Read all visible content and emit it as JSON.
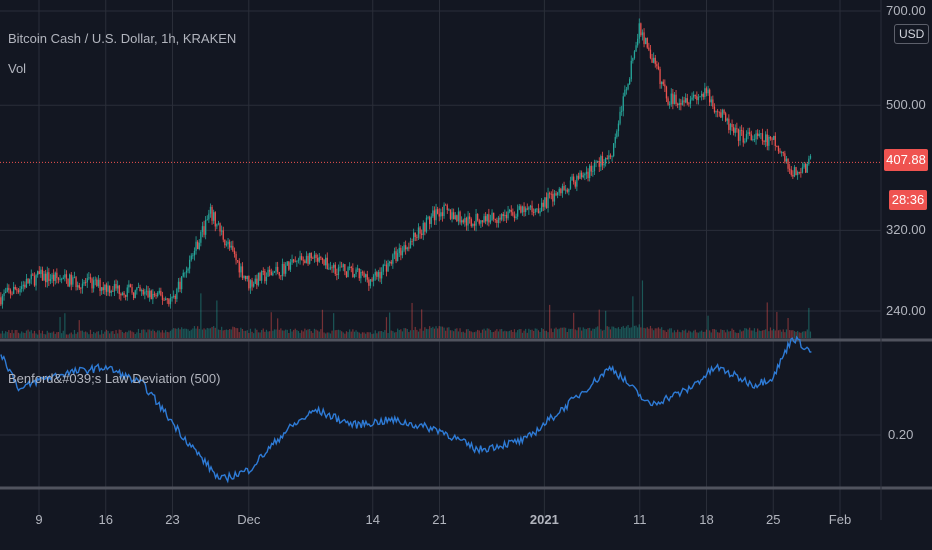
{
  "header": {
    "symbol_title": "Bitcoin Cash / U.S. Dollar, 1h, KRAKEN",
    "volume_label": "Vol",
    "indicator_label": "Benford&#039;s Law Deviation (500)",
    "currency_button": "USD"
  },
  "price_axis": {
    "ticks": [
      "700.00",
      "500.00",
      "320.00",
      "240.00"
    ],
    "last_price": "407.88",
    "countdown": "28:36"
  },
  "indicator_axis": {
    "ticks": [
      "0.20"
    ]
  },
  "time_axis": {
    "ticks": [
      "9",
      "16",
      "23",
      "Dec",
      "14",
      "21",
      "2021",
      "11",
      "18",
      "25",
      "Feb"
    ]
  },
  "colors": {
    "background": "#131722",
    "grid": "#2a2e39",
    "up": "#26a69a",
    "down": "#ef5350",
    "indicator_line": "#2962ff",
    "badge_red": "#ef5350",
    "text": "#b2b5be"
  },
  "chart_data": [
    {
      "type": "candlestick",
      "title": "Bitcoin Cash / U.S. Dollar, 1h, KRAKEN",
      "scale": "log",
      "ylim": [
        220,
        720
      ],
      "y_ticks": [
        240,
        320,
        500,
        700
      ],
      "x": [
        "2020-11-05",
        "2020-11-09",
        "2020-11-16",
        "2020-11-23",
        "2020-11-27",
        "2020-12-01",
        "2020-12-07",
        "2020-12-14",
        "2020-12-21",
        "2020-12-24",
        "2020-12-31",
        "2021-01-04",
        "2021-01-08",
        "2021-01-11",
        "2021-01-14",
        "2021-01-18",
        "2021-01-21",
        "2021-01-25",
        "2021-01-27",
        "2021-01-29"
      ],
      "close": [
        252,
        272,
        262,
        250,
        340,
        265,
        290,
        268,
        345,
        330,
        345,
        380,
        420,
        660,
        510,
        520,
        450,
        440,
        390,
        408
      ],
      "last_price": 407.88
    },
    {
      "type": "bar",
      "title": "Vol",
      "x": [
        "2020-11-05",
        "2020-11-09",
        "2020-11-16",
        "2020-11-23",
        "2020-11-27",
        "2020-12-01",
        "2020-12-07",
        "2020-12-14",
        "2020-12-21",
        "2020-12-24",
        "2020-12-31",
        "2021-01-04",
        "2021-01-08",
        "2021-01-11",
        "2021-01-14",
        "2021-01-18",
        "2021-01-21",
        "2021-01-25",
        "2021-01-27",
        "2021-01-29"
      ],
      "values": [
        1,
        1,
        1,
        2,
        5,
        2,
        2,
        1,
        4,
        2,
        2,
        3,
        4,
        6,
        2,
        2,
        2,
        3,
        2,
        2
      ]
    },
    {
      "type": "line",
      "title": "Benford&#039;s Law Deviation (500)",
      "ylim": [
        0.135,
        0.305
      ],
      "y_ticks": [
        0.2
      ],
      "x": [
        "2020-11-05",
        "2020-11-07",
        "2020-11-09",
        "2020-11-12",
        "2020-11-16",
        "2020-11-20",
        "2020-11-24",
        "2020-11-28",
        "2020-12-01",
        "2020-12-05",
        "2020-12-08",
        "2020-12-12",
        "2020-12-16",
        "2020-12-21",
        "2020-12-25",
        "2020-12-30",
        "2021-01-04",
        "2021-01-08",
        "2021-01-12",
        "2021-01-16",
        "2021-01-19",
        "2021-01-23",
        "2021-01-25",
        "2021-01-27",
        "2021-01-29"
      ],
      "values": [
        0.282,
        0.245,
        0.255,
        0.262,
        0.268,
        0.25,
        0.2,
        0.155,
        0.165,
        0.205,
        0.225,
        0.21,
        0.215,
        0.205,
        0.185,
        0.195,
        0.235,
        0.268,
        0.23,
        0.245,
        0.268,
        0.25,
        0.258,
        0.298,
        0.283
      ]
    }
  ]
}
